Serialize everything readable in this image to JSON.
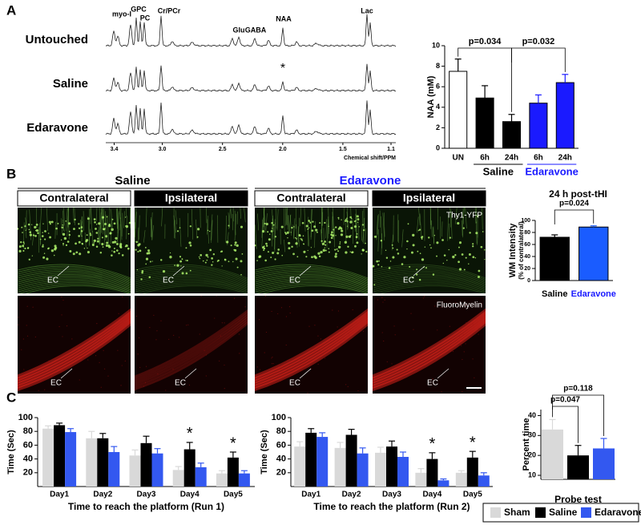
{
  "panel_labels": [
    "A",
    "B",
    "C"
  ],
  "spectra": {
    "rows": [
      "Untouched",
      "Saline",
      "Edaravone"
    ],
    "peaks": [
      "myo-I",
      "GPC",
      "PC",
      "Cr/PCr",
      "Glu",
      "GABA",
      "NAA",
      "Lac"
    ],
    "marker": "*",
    "xlabel": "Chemical shift/PPM",
    "xlim": [
      3.47,
      1.06
    ],
    "xticks": [
      3.4,
      {
        "value": 3,
        "label": "3.0"
      },
      2.5,
      {
        "value": 2,
        "label": "2.0"
      },
      1.5,
      1.1
    ]
  },
  "images": {
    "groups": [
      {
        "title": "Saline",
        "color": "#000000",
        "columns": [
          "Contralateral",
          "Ipsilateral"
        ]
      },
      {
        "title": "Edaravone",
        "color": "#1a1aff",
        "columns": [
          "Contralateral",
          "Ipsilateral"
        ]
      }
    ],
    "stains": [
      "Thy1-YFP",
      "FluoroMyelin"
    ],
    "region_labels": [
      "EC",
      "EC",
      "EC",
      "EC",
      "EC",
      "EC",
      "EC",
      "EC"
    ]
  },
  "chart_data": [
    {
      "type": "bar",
      "ylabel": "NAA (mM)",
      "categories": [
        "UN",
        "6h",
        "24h",
        "6h",
        "24h"
      ],
      "groups": [
        {
          "label": "Saline",
          "color": "#000000"
        },
        {
          "label": "Edaravone",
          "color": "#1a1aff"
        }
      ],
      "values": [
        7.5,
        4.9,
        2.6,
        4.4,
        6.4
      ],
      "errors": [
        1.2,
        1.2,
        0.7,
        0.8,
        0.8
      ],
      "colors": [
        "#ffffff",
        "#000000",
        "#000000",
        "#1a1aff",
        "#1a1aff"
      ],
      "annotations": [
        "p=0.034",
        "p=0.032"
      ],
      "ylim": [
        0,
        10
      ],
      "yticks": [
        0,
        2,
        4,
        6,
        8,
        10
      ]
    },
    {
      "type": "bar",
      "title": "24 h post-tHI",
      "ylabel": [
        "WM Intensity",
        "(% of contralateral)"
      ],
      "categories": [
        "Saline",
        "Edaravone"
      ],
      "category_colors": [
        "#000000",
        "#1a1aff"
      ],
      "values": [
        72,
        89
      ],
      "errors": [
        4,
        2
      ],
      "colors": [
        "#000000",
        "#1a5cff"
      ],
      "annotations": [
        "p=0.024"
      ],
      "ylim": [
        0,
        100
      ],
      "yticks": [
        0,
        20,
        40,
        60,
        80,
        100
      ]
    },
    {
      "type": "grouped-bar",
      "ylabel": "Time (Sec)",
      "xlabel": "Time to reach the platform (Run 1)",
      "categories": [
        "Day1",
        "Day2",
        "Day3",
        "Day4",
        "Day5"
      ],
      "series": [
        {
          "color": "#d9d9d9",
          "values": [
            84,
            70,
            45,
            24,
            19
          ],
          "errors": [
            4,
            10,
            8,
            5,
            4
          ]
        },
        {
          "color": "#000000",
          "values": [
            89,
            70,
            63,
            54,
            42
          ],
          "errors": [
            3,
            7,
            10,
            10,
            8
          ]
        },
        {
          "color": "#3358f0",
          "values": [
            79,
            50,
            48,
            28,
            19
          ],
          "errors": [
            5,
            8,
            7,
            6,
            4
          ]
        }
      ],
      "significance": [
        null,
        null,
        null,
        "*",
        "*"
      ],
      "ylim": [
        0,
        100
      ],
      "yticks": [
        20,
        40,
        60,
        80,
        100
      ]
    },
    {
      "type": "grouped-bar",
      "ylabel": "Time (Sec)",
      "xlabel": "Time to reach the platform (Run 2)",
      "categories": [
        "Day1",
        "Day2",
        "Day3",
        "Day4",
        "Day5"
      ],
      "series": [
        {
          "color": "#d9d9d9",
          "values": [
            58,
            56,
            49,
            20,
            20
          ],
          "errors": [
            7,
            8,
            8,
            6,
            3
          ]
        },
        {
          "color": "#000000",
          "values": [
            78,
            75,
            58,
            40,
            42
          ],
          "errors": [
            6,
            8,
            8,
            9,
            9
          ]
        },
        {
          "color": "#3358f0",
          "values": [
            72,
            48,
            43,
            9,
            16
          ],
          "errors": [
            6,
            8,
            7,
            2,
            4
          ]
        }
      ],
      "significance": [
        null,
        null,
        null,
        "*",
        "*"
      ],
      "ylim": [
        0,
        100
      ],
      "yticks": [
        20,
        40,
        60,
        80,
        100
      ]
    },
    {
      "type": "grouped-bar",
      "ylabel": "Percent time",
      "xlabel": "Probe test",
      "series": [
        {
          "name": "Sham",
          "color": "#d9d9d9",
          "values": [
            33
          ],
          "errors": [
            5
          ]
        },
        {
          "name": "Saline",
          "color": "#000000",
          "values": [
            20
          ],
          "errors": [
            5
          ]
        },
        {
          "name": "Edaravone",
          "color": "#3358f0",
          "values": [
            23.5
          ],
          "errors": [
            5
          ]
        }
      ],
      "annotations": [
        "p=0.047",
        "p=0.118"
      ],
      "legend": "bottom-right",
      "ylim": [
        8,
        43
      ],
      "yticks": [
        10,
        20,
        30,
        40
      ]
    }
  ]
}
